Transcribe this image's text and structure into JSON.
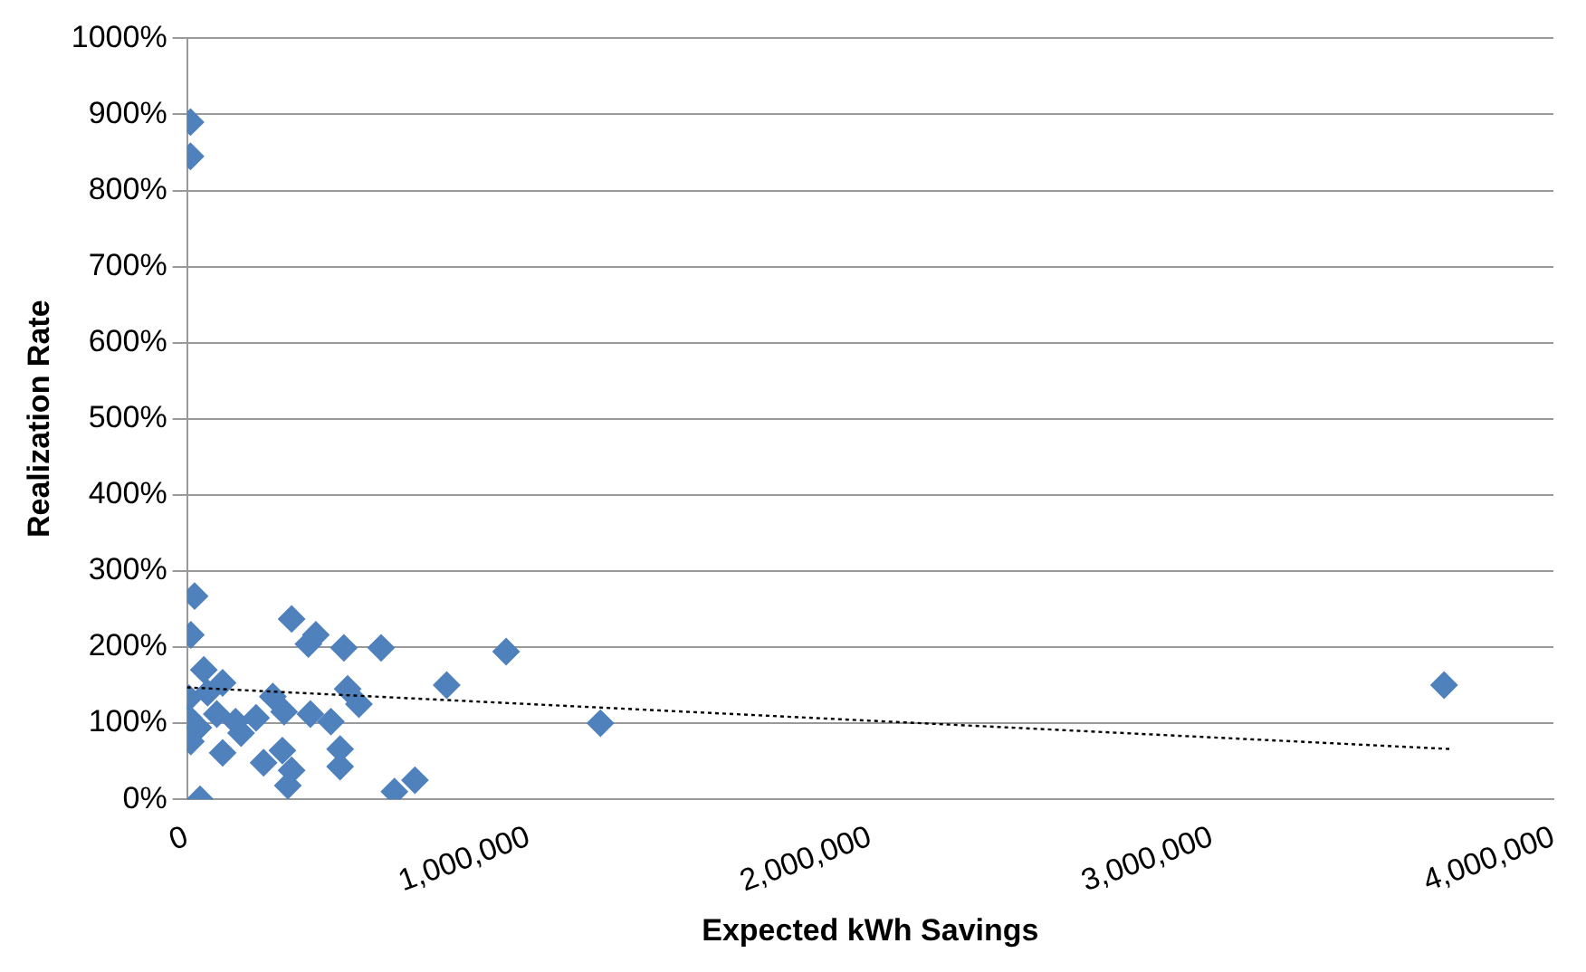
{
  "chart_data": {
    "type": "scatter",
    "xlabel": "Expected kWh Savings",
    "ylabel": "Realization Rate",
    "xlim": [
      0,
      4000000
    ],
    "ylim": [
      0,
      1000
    ],
    "xticks": [
      0,
      {
        "value": 1000000,
        "label": "1,000,000"
      },
      {
        "value": 2000000,
        "label": "2,000,000"
      },
      {
        "value": 3000000,
        "label": "3,000,000"
      },
      {
        "value": 4000000,
        "label": "4,000,000"
      }
    ],
    "yticks": [
      {
        "value": 0,
        "label": "0%"
      },
      {
        "value": 100,
        "label": "100%"
      },
      {
        "value": 200,
        "label": "200%"
      },
      {
        "value": 300,
        "label": "300%"
      },
      {
        "value": 400,
        "label": "400%"
      },
      {
        "value": 500,
        "label": "500%"
      },
      {
        "value": 600,
        "label": "600%"
      },
      {
        "value": 700,
        "label": "700%"
      },
      {
        "value": 800,
        "label": "800%"
      },
      {
        "value": 900,
        "label": "900%"
      },
      {
        "value": 1000,
        "label": "1000%"
      }
    ],
    "grid": "y",
    "legend": false,
    "marker": "diamond",
    "series": [
      {
        "color": "#4f81bd",
        "x": [
          10000,
          10000,
          22000,
          11000,
          306000,
          355000,
          377000,
          459000,
          568000,
          934000,
          760000,
          1210000,
          3680000,
          49000,
          104000,
          5000,
          60000,
          251000,
          470000,
          503000,
          5000,
          33000,
          87000,
          142000,
          202000,
          284000,
          361000,
          421000,
          11000,
          104000,
          158000,
          224000,
          279000,
          306000,
          295000,
          448000,
          448000,
          38000,
          607000,
          667000
        ],
        "values": [
          890,
          845,
          267,
          216,
          237,
          204,
          216,
          199,
          199,
          194,
          150,
          100,
          150,
          170,
          153,
          133,
          140,
          135,
          145,
          125,
          107,
          94,
          112,
          102,
          107,
          115,
          112,
          102,
          76,
          61,
          87,
          48,
          64,
          38,
          18,
          66,
          43,
          0,
          10,
          25
        ]
      },
      {
        "type": "line",
        "color": "#000000",
        "line_style": "dotted",
        "marker": "none",
        "x": [
          0,
          3700000
        ],
        "values": [
          147,
          66
        ]
      }
    ]
  }
}
